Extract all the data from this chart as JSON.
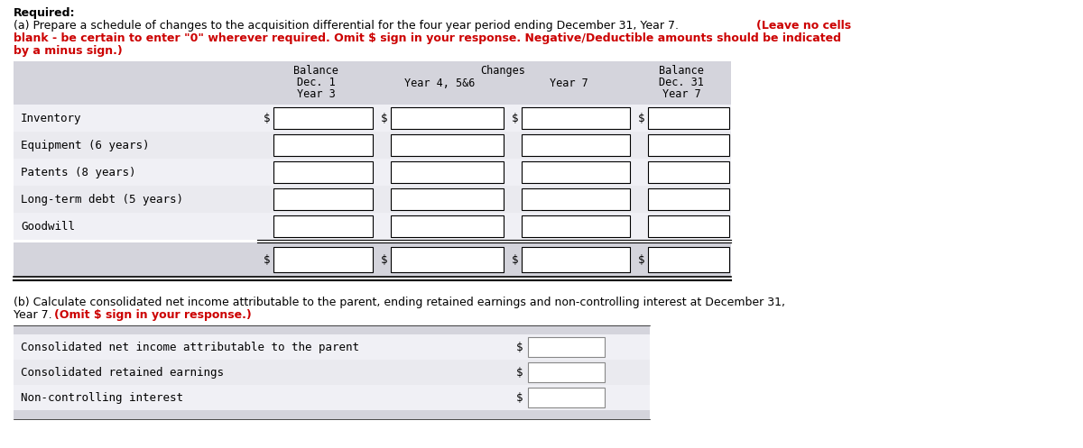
{
  "required_text": "Required:",
  "line_a1": "(a) Prepare a schedule of changes to the acquisition differential for the four year period ending December 31, Year 7. ",
  "line_a1_bold_red": "(Leave no cells",
  "line_a2_bold_red": "blank - be certain to enter \"0\" wherever required. Omit $ sign in your response. Negative/Deductible amounts should be indicated",
  "line_a3_bold_red": "by a minus sign.)",
  "col_header_1": [
    "Balance",
    "Dec. 1",
    "Year 3"
  ],
  "col_header_changes": "Changes",
  "col_header_2": "Year 4, 5&6",
  "col_header_3": "Year 7",
  "col_header_4": [
    "Balance",
    "Dec. 31",
    "Year 7"
  ],
  "rows": [
    "Inventory",
    "Equipment (6 years)",
    "Patents (8 years)",
    "Long-term debt (5 years)",
    "Goodwill"
  ],
  "line_b1": "(b) Calculate consolidated net income attributable to the parent, ending retained earnings and non-controlling interest at December 31,",
  "line_b2_normal": "Year 7. ",
  "line_b2_red": "(Omit $ sign in your response.)",
  "section_b_rows": [
    "Consolidated net income attributable to the parent",
    "Consolidated retained earnings",
    "Non-controlling interest"
  ],
  "bg_header": "#d4d4dc",
  "bg_row_light": "#eaeaef",
  "bg_row_lighter": "#f0f0f5",
  "bg_section_b": "#d4d4dc",
  "red": "#cc0000",
  "black": "#000000",
  "white": "#ffffff"
}
